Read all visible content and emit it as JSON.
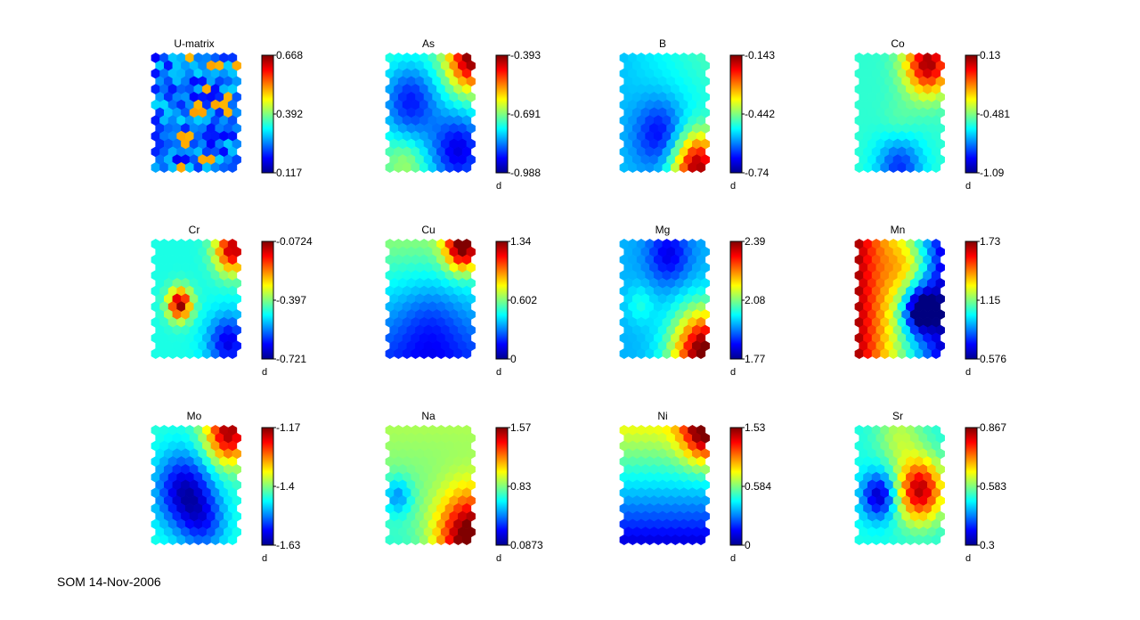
{
  "footer": "SOM 14-Nov-2006",
  "chart_data": [
    {
      "type": "heatmap",
      "title": "U-matrix",
      "colorbar": {
        "ticks": [
          "0.668",
          "0.392",
          "0.117"
        ],
        "unit": ""
      },
      "range": [
        0.117,
        0.668
      ],
      "pattern": "umatrix"
    },
    {
      "type": "heatmap",
      "title": "As",
      "colorbar": {
        "ticks": [
          "-0.393",
          "-0.691",
          "-0.988"
        ],
        "unit": "d"
      },
      "range": [
        -0.988,
        -0.393
      ],
      "pattern": "as"
    },
    {
      "type": "heatmap",
      "title": "B",
      "colorbar": {
        "ticks": [
          "-0.143",
          "-0.442",
          "-0.74"
        ],
        "unit": "d"
      },
      "range": [
        -0.74,
        -0.143
      ],
      "pattern": "b"
    },
    {
      "type": "heatmap",
      "title": "Co",
      "colorbar": {
        "ticks": [
          "0.13",
          "-0.481",
          "-1.09"
        ],
        "unit": "d"
      },
      "range": [
        -1.09,
        0.13
      ],
      "pattern": "co"
    },
    {
      "type": "heatmap",
      "title": "Cr",
      "colorbar": {
        "ticks": [
          "-0.0724",
          "-0.397",
          "-0.721"
        ],
        "unit": "d"
      },
      "range": [
        -0.721,
        -0.0724
      ],
      "pattern": "cr"
    },
    {
      "type": "heatmap",
      "title": "Cu",
      "colorbar": {
        "ticks": [
          "1.34",
          "0.602",
          "0"
        ],
        "unit": "d"
      },
      "range": [
        0,
        1.34
      ],
      "pattern": "cu"
    },
    {
      "type": "heatmap",
      "title": "Mg",
      "colorbar": {
        "ticks": [
          "2.39",
          "2.08",
          "1.77"
        ],
        "unit": "d"
      },
      "range": [
        1.77,
        2.39
      ],
      "pattern": "mg"
    },
    {
      "type": "heatmap",
      "title": "Mn",
      "colorbar": {
        "ticks": [
          "1.73",
          "1.15",
          "0.576"
        ],
        "unit": "d"
      },
      "range": [
        0.576,
        1.73
      ],
      "pattern": "mn"
    },
    {
      "type": "heatmap",
      "title": "Mo",
      "colorbar": {
        "ticks": [
          "-1.17",
          "-1.4",
          "-1.63"
        ],
        "unit": "d"
      },
      "range": [
        -1.63,
        -1.17
      ],
      "pattern": "mo"
    },
    {
      "type": "heatmap",
      "title": "Na",
      "colorbar": {
        "ticks": [
          "1.57",
          "0.83",
          "0.0873"
        ],
        "unit": "d"
      },
      "range": [
        0.0873,
        1.57
      ],
      "pattern": "na"
    },
    {
      "type": "heatmap",
      "title": "Ni",
      "colorbar": {
        "ticks": [
          "1.53",
          "0.584",
          "0"
        ],
        "unit": "d"
      },
      "range": [
        0,
        1.53
      ],
      "pattern": "ni"
    },
    {
      "type": "heatmap",
      "title": "Sr",
      "colorbar": {
        "ticks": [
          "0.867",
          "0.583",
          "0.3"
        ],
        "unit": "d"
      },
      "range": [
        0.3,
        0.867
      ],
      "pattern": "sr"
    }
  ]
}
